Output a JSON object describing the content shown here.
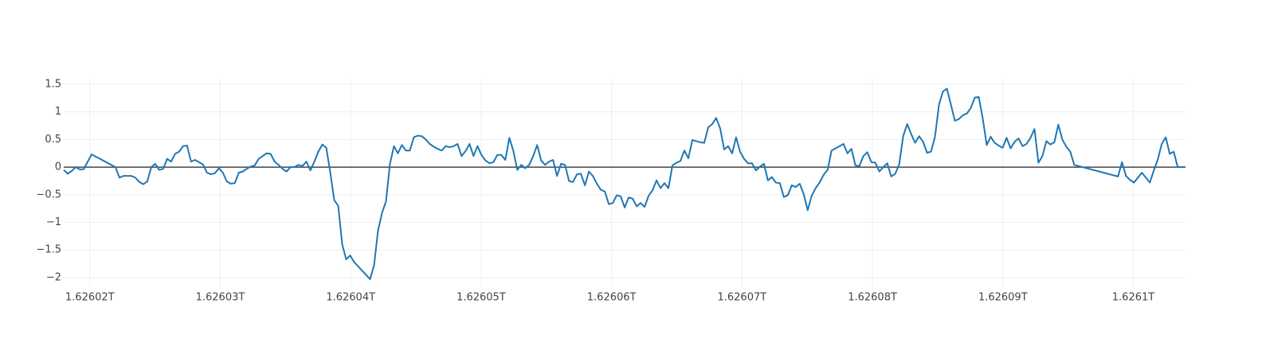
{
  "chart_data": {
    "type": "line",
    "color": "#1f77b4",
    "grid": true,
    "zeroline": true,
    "xlim": [
      1626018000000,
      1626104000000
    ],
    "xticks": [
      {
        "value": 1626020000000,
        "label": "1.62602T"
      },
      {
        "value": 1626030000000,
        "label": "1.62603T"
      },
      {
        "value": 1626040000000,
        "label": "1.62604T"
      },
      {
        "value": 1626050000000,
        "label": "1.62605T"
      },
      {
        "value": 1626060000000,
        "label": "1.62606T"
      },
      {
        "value": 1626070000000,
        "label": "1.62607T"
      },
      {
        "value": 1626080000000,
        "label": "1.62608T"
      },
      {
        "value": 1626090000000,
        "label": "1.62609T"
      },
      {
        "value": 1626100000000,
        "label": "1.6261T"
      }
    ],
    "ylim": [
      -2.16,
      1.6
    ],
    "yticks": [
      {
        "value": -2,
        "label": "−2"
      },
      {
        "value": -1.5,
        "label": "−1.5"
      },
      {
        "value": -1,
        "label": "−1"
      },
      {
        "value": -0.5,
        "label": "−0.5"
      },
      0,
      0.5,
      1,
      1.5
    ],
    "x": [
      1626018000000,
      1626018305000,
      1626018610000,
      1626018915000,
      1626019220000,
      1626019525000,
      1626020135000,
      1626021965000,
      1626022270000,
      1626022575000,
      1626023185000,
      1626023490000,
      1626023795000,
      1626024100000,
      1626024405000,
      1626024710000,
      1626025015000,
      1626025320000,
      1626025625000,
      1626025930000,
      1626026235000,
      1626026540000,
      1626026845000,
      1626027150000,
      1626027455000,
      1626027760000,
      1626028065000,
      1626028370000,
      1626028675000,
      1626028980000,
      1626029285000,
      1626029590000,
      1626029895000,
      1626030200000,
      1626030505000,
      1626030810000,
      1626031115000,
      1626031420000,
      1626031725000,
      1626032030000,
      1626032335000,
      1626032640000,
      1626032945000,
      1626033250000,
      1626033555000,
      1626033860000,
      1626034165000,
      1626034470000,
      1626034775000,
      1626035080000,
      1626035385000,
      1626035690000,
      1626035995000,
      1626036300000,
      1626036605000,
      1626036910000,
      1626037215000,
      1626037520000,
      1626037825000,
      1626038130000,
      1626038435000,
      1626038740000,
      1626039045000,
      1626039350000,
      1626039655000,
      1626039960000,
      1626040265000,
      1626041485000,
      1626041790000,
      1626042095000,
      1626042400000,
      1626042705000,
      1626043010000,
      1626043315000,
      1626043620000,
      1626043925000,
      1626044230000,
      1626044535000,
      1626044840000,
      1626045145000,
      1626045450000,
      1626045755000,
      1626046060000,
      1626046365000,
      1626046670000,
      1626046975000,
      1626047280000,
      1626047585000,
      1626047890000,
      1626048195000,
      1626048500000,
      1626048805000,
      1626049110000,
      1626049415000,
      1626049720000,
      1626050025000,
      1626050330000,
      1626050635000,
      1626050940000,
      1626051245000,
      1626051550000,
      1626051855000,
      1626052160000,
      1626052465000,
      1626052770000,
      1626053075000,
      1626053380000,
      1626053685000,
      1626053990000,
      1626054295000,
      1626054600000,
      1626054905000,
      1626055210000,
      1626055515000,
      1626055820000,
      1626056125000,
      1626056430000,
      1626056735000,
      1626057040000,
      1626057345000,
      1626057650000,
      1626057955000,
      1626058260000,
      1626058565000,
      1626058870000,
      1626059175000,
      1626059480000,
      1626059785000,
      1626060090000,
      1626060395000,
      1626060700000,
      1626061005000,
      1626061310000,
      1626061615000,
      1626061920000,
      1626062225000,
      1626062530000,
      1626062835000,
      1626063140000,
      1626063445000,
      1626063750000,
      1626064055000,
      1626064360000,
      1626064665000,
      1626064970000,
      1626065275000,
      1626065580000,
      1626065885000,
      1626066190000,
      1626066495000,
      1626066800000,
      1626067105000,
      1626067410000,
      1626067715000,
      1626068020000,
      1626068325000,
      1626068630000,
      1626068935000,
      1626069240000,
      1626069545000,
      1626069850000,
      1626070155000,
      1626070460000,
      1626070765000,
      1626071070000,
      1626071375000,
      1626071680000,
      1626071985000,
      1626072290000,
      1626072595000,
      1626072900000,
      1626073205000,
      1626073510000,
      1626073815000,
      1626074120000,
      1626074425000,
      1626074730000,
      1626075035000,
      1626075340000,
      1626075645000,
      1626075950000,
      1626076255000,
      1626076560000,
      1626076865000,
      1626077475000,
      1626077780000,
      1626078085000,
      1626078390000,
      1626078695000,
      1626079000000,
      1626079305000,
      1626079610000,
      1626079915000,
      1626080220000,
      1626080525000,
      1626080830000,
      1626081135000,
      1626081440000,
      1626081745000,
      1626082050000,
      1626082355000,
      1626082660000,
      1626082965000,
      1626083270000,
      1626083575000,
      1626083880000,
      1626084185000,
      1626084490000,
      1626084795000,
      1626085100000,
      1626085405000,
      1626085710000,
      1626086320000,
      1626086625000,
      1626086930000,
      1626087235000,
      1626087540000,
      1626087845000,
      1626088150000,
      1626088455000,
      1626088760000,
      1626089065000,
      1626089370000,
      1626089675000,
      1626089980000,
      1626090285000,
      1626090590000,
      1626090895000,
      1626091200000,
      1626091505000,
      1626091810000,
      1626092115000,
      1626092420000,
      1626092725000,
      1626093030000,
      1626093335000,
      1626093640000,
      1626093945000,
      1626094250000,
      1626094555000,
      1626094860000,
      1626095165000,
      1626095470000,
      1626098825000,
      1626099130000,
      1626099435000,
      1626099740000,
      1626100045000,
      1626100655000,
      1626101265000,
      1626101570000,
      1626101875000,
      1626102180000,
      1626102485000,
      1626102790000,
      1626103095000,
      1626103400000,
      1626104000000
    ],
    "values": [
      -0.05,
      -0.12,
      -0.07,
      0.0,
      -0.04,
      -0.04,
      0.23,
      0.0,
      -0.19,
      -0.16,
      -0.16,
      -0.19,
      -0.27,
      -0.31,
      -0.26,
      0.0,
      0.06,
      -0.05,
      -0.03,
      0.15,
      0.1,
      0.24,
      0.28,
      0.38,
      0.39,
      0.1,
      0.13,
      0.09,
      0.05,
      -0.1,
      -0.13,
      -0.11,
      -0.02,
      -0.1,
      -0.26,
      -0.3,
      -0.29,
      -0.1,
      -0.08,
      -0.03,
      0.01,
      0.03,
      0.15,
      0.2,
      0.25,
      0.24,
      0.1,
      0.04,
      -0.03,
      -0.08,
      0.0,
      0.0,
      0.04,
      0.02,
      0.1,
      -0.06,
      0.1,
      0.28,
      0.41,
      0.35,
      -0.1,
      -0.6,
      -0.7,
      -1.4,
      -1.67,
      -1.6,
      -1.72,
      -2.03,
      -1.78,
      -1.15,
      -0.83,
      -0.62,
      0.06,
      0.38,
      0.25,
      0.4,
      0.3,
      0.3,
      0.54,
      0.57,
      0.56,
      0.5,
      0.42,
      0.37,
      0.33,
      0.3,
      0.38,
      0.36,
      0.38,
      0.42,
      0.2,
      0.29,
      0.42,
      0.2,
      0.38,
      0.22,
      0.12,
      0.07,
      0.09,
      0.22,
      0.22,
      0.13,
      0.53,
      0.3,
      -0.05,
      0.04,
      -0.02,
      0.04,
      0.2,
      0.4,
      0.12,
      0.04,
      0.1,
      0.13,
      -0.16,
      0.06,
      0.04,
      -0.25,
      -0.27,
      -0.13,
      -0.12,
      -0.33,
      -0.08,
      -0.16,
      -0.3,
      -0.41,
      -0.44,
      -0.67,
      -0.65,
      -0.51,
      -0.53,
      -0.73,
      -0.55,
      -0.57,
      -0.71,
      -0.65,
      -0.72,
      -0.52,
      -0.42,
      -0.24,
      -0.38,
      -0.29,
      -0.38,
      0.03,
      0.08,
      0.11,
      0.3,
      0.16,
      0.49,
      0.47,
      0.45,
      0.44,
      0.72,
      0.78,
      0.89,
      0.7,
      0.32,
      0.38,
      0.25,
      0.54,
      0.28,
      0.15,
      0.07,
      0.07,
      -0.06,
      0.01,
      0.06,
      -0.24,
      -0.18,
      -0.28,
      -0.29,
      -0.54,
      -0.51,
      -0.33,
      -0.36,
      -0.3,
      -0.49,
      -0.78,
      -0.52,
      -0.38,
      -0.28,
      -0.14,
      -0.05,
      0.3,
      0.38,
      0.42,
      0.25,
      0.33,
      0.03,
      0.02,
      0.2,
      0.27,
      0.09,
      0.08,
      -0.08,
      0.0,
      0.07,
      -0.17,
      -0.12,
      0.05,
      0.56,
      0.78,
      0.6,
      0.44,
      0.56,
      0.46,
      0.26,
      0.28,
      0.55,
      1.13,
      1.37,
      1.42,
      0.84,
      0.87,
      0.94,
      0.97,
      1.07,
      1.26,
      1.27,
      0.88,
      0.4,
      0.55,
      0.44,
      0.39,
      0.35,
      0.53,
      0.34,
      0.46,
      0.52,
      0.38,
      0.42,
      0.53,
      0.69,
      0.08,
      0.2,
      0.47,
      0.41,
      0.45,
      0.77,
      0.5,
      0.37,
      0.28,
      0.04,
      -0.17,
      0.09,
      -0.16,
      -0.23,
      -0.28,
      -0.1,
      -0.28,
      -0.06,
      0.14,
      0.42,
      0.54,
      0.24,
      0.28,
      0.0,
      0.0
    ]
  }
}
